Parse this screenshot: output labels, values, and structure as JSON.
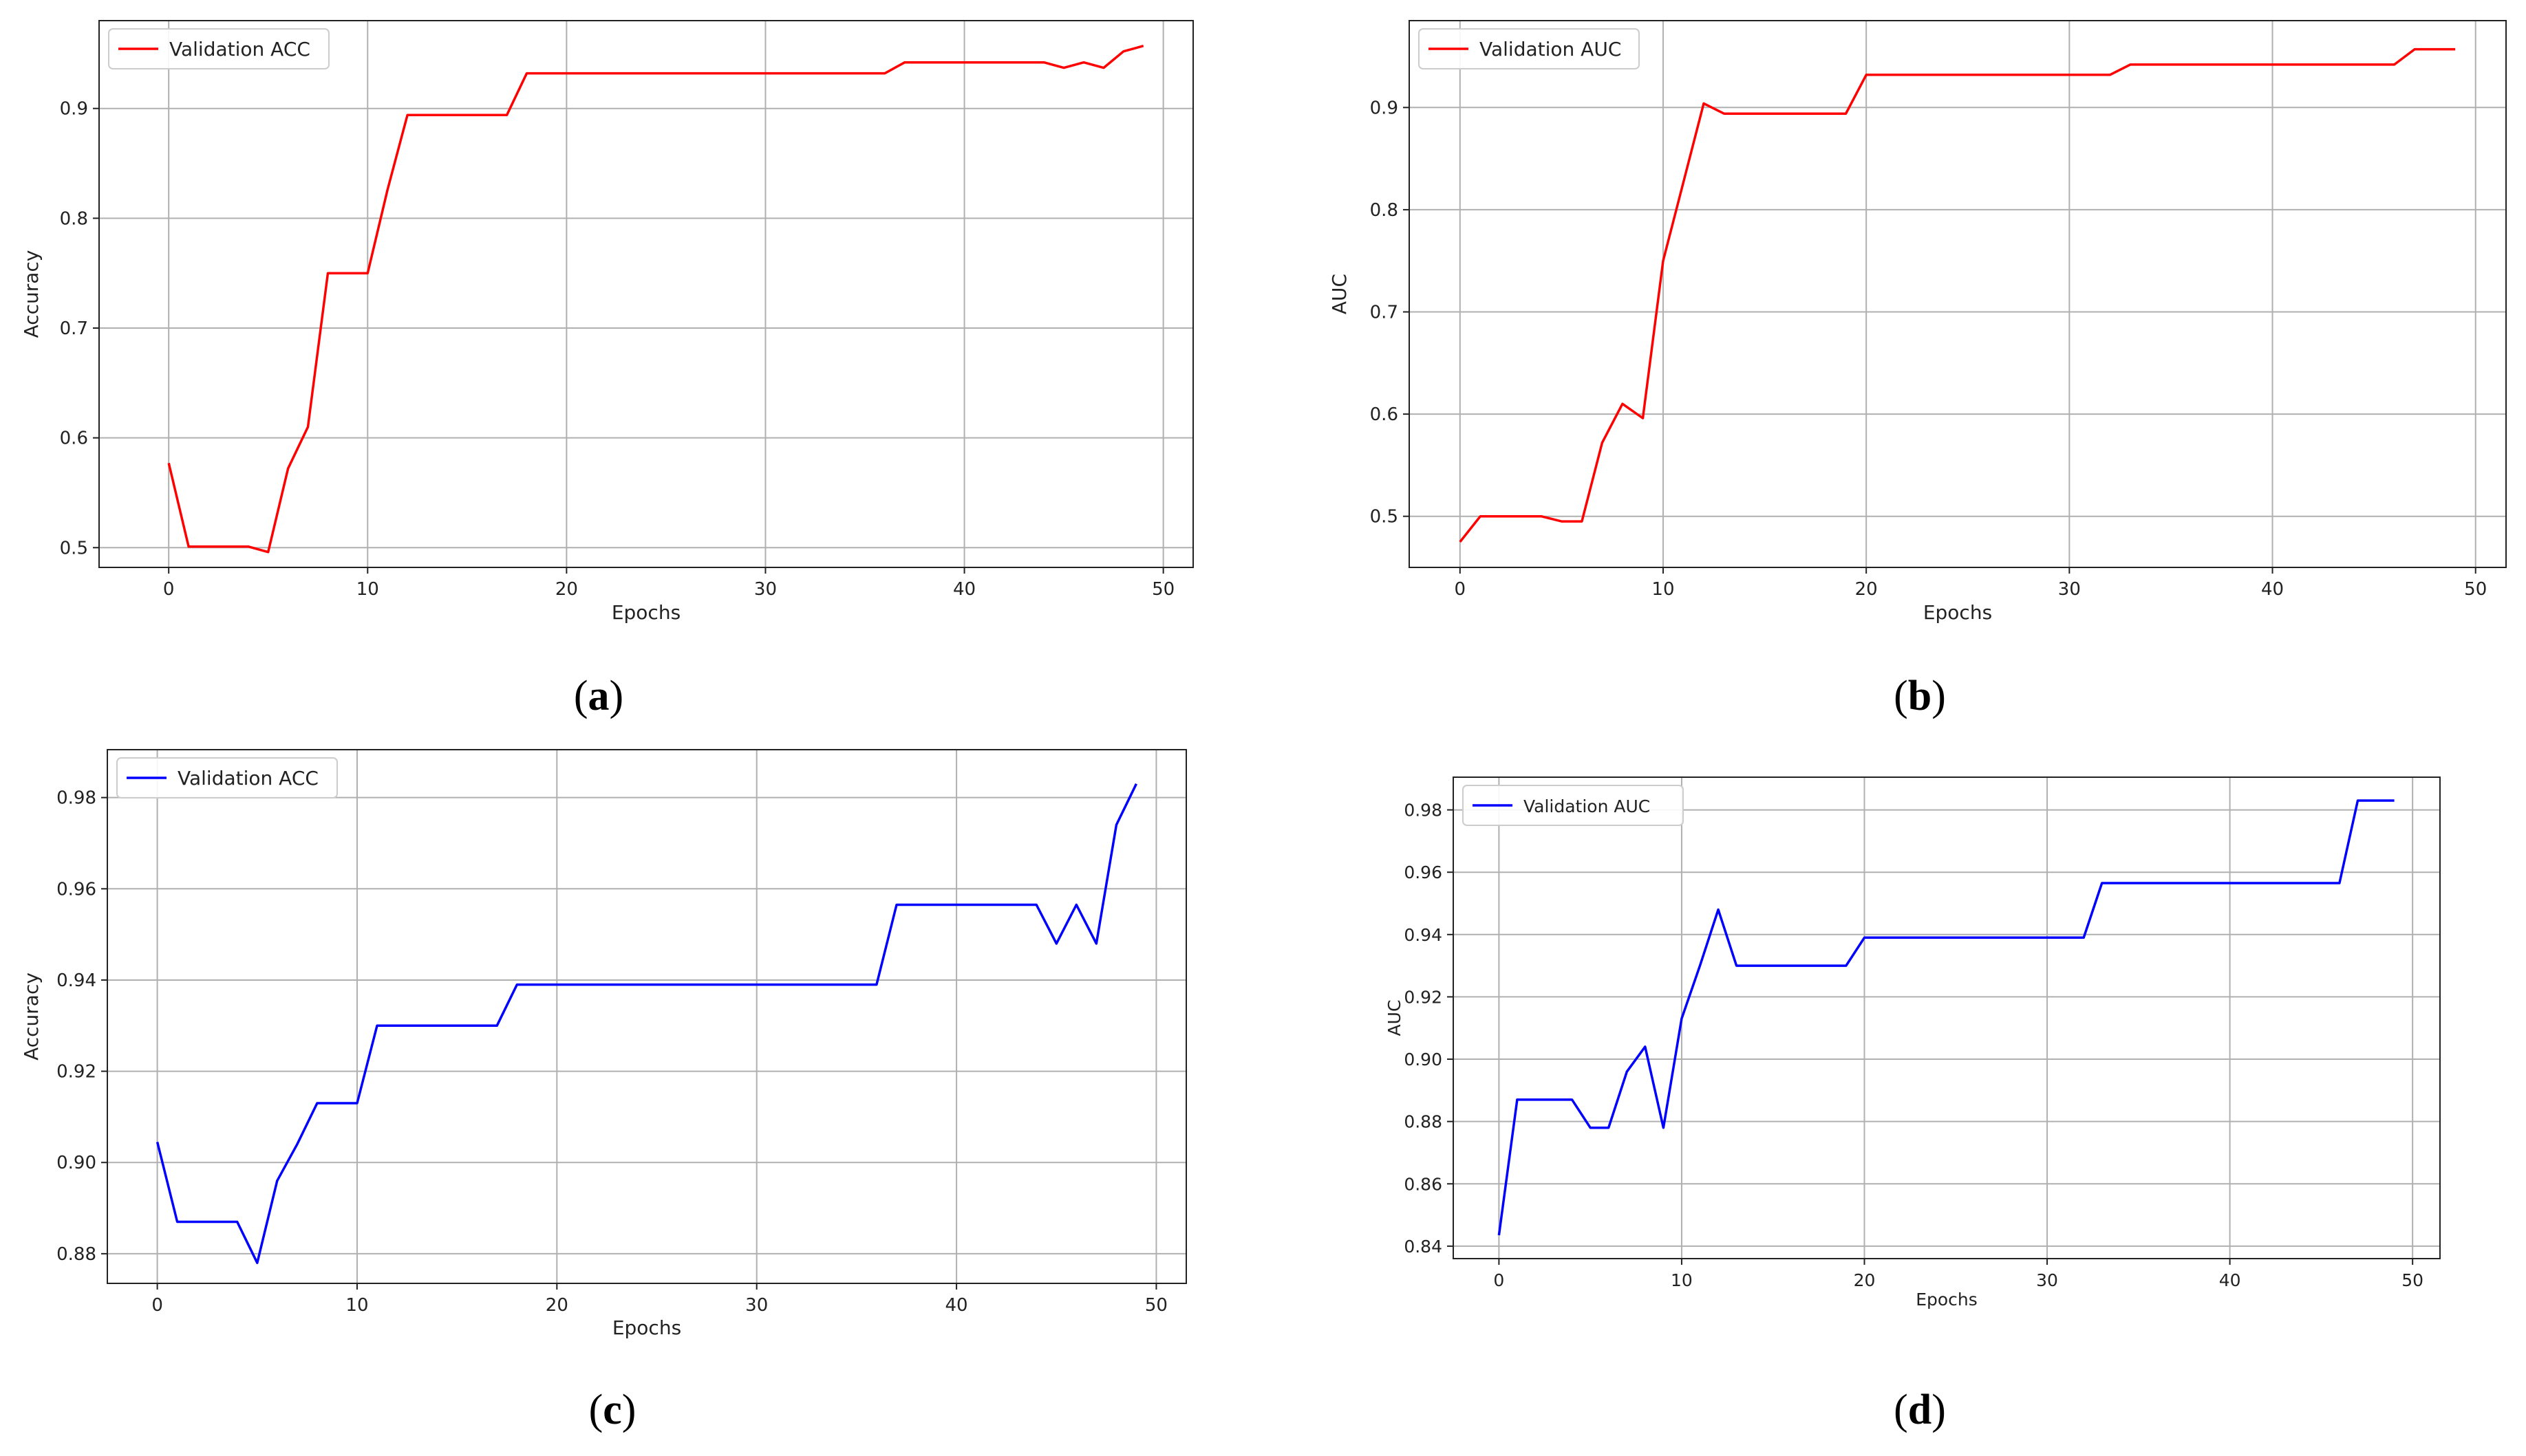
{
  "chart_data": [
    {
      "type": "line",
      "panel": "a",
      "xlabel": "Epochs",
      "ylabel": "Accuracy",
      "xlim": [
        -3.5,
        51.5
      ],
      "ylim": [
        0.482,
        0.98
      ],
      "xticks": [
        0,
        10,
        20,
        30,
        40,
        50
      ],
      "yticks": [
        0.5,
        0.6,
        0.7,
        0.8,
        0.9
      ],
      "ytick_labels": [
        "0.5",
        "0.6",
        "0.7",
        "0.8",
        "0.9"
      ],
      "grid": true,
      "legend_position": "top-left",
      "color": "#ff0000",
      "series": [
        {
          "name": "Validation ACC",
          "x": [
            0,
            1,
            2,
            3,
            4,
            5,
            6,
            7,
            8,
            9,
            10,
            11,
            12,
            13,
            14,
            15,
            16,
            17,
            18,
            19,
            20,
            21,
            22,
            23,
            24,
            25,
            26,
            27,
            28,
            29,
            30,
            31,
            32,
            33,
            34,
            35,
            36,
            37,
            38,
            39,
            40,
            41,
            42,
            43,
            44,
            45,
            46,
            47,
            48,
            49
          ],
          "y": [
            0.577,
            0.501,
            0.501,
            0.501,
            0.501,
            0.496,
            0.572,
            0.61,
            0.75,
            0.75,
            0.75,
            0.826,
            0.894,
            0.894,
            0.894,
            0.894,
            0.894,
            0.894,
            0.932,
            0.932,
            0.932,
            0.932,
            0.932,
            0.932,
            0.932,
            0.932,
            0.932,
            0.932,
            0.932,
            0.932,
            0.932,
            0.932,
            0.932,
            0.932,
            0.932,
            0.932,
            0.932,
            0.942,
            0.942,
            0.942,
            0.942,
            0.942,
            0.942,
            0.942,
            0.942,
            0.937,
            0.942,
            0.937,
            0.952,
            0.957
          ]
        }
      ]
    },
    {
      "type": "line",
      "panel": "b",
      "xlabel": "Epochs",
      "ylabel": "AUC",
      "xlim": [
        -2.5,
        51.5
      ],
      "ylim": [
        0.45,
        0.985
      ],
      "xticks": [
        0,
        10,
        20,
        30,
        40,
        50
      ],
      "yticks": [
        0.5,
        0.6,
        0.7,
        0.8,
        0.9
      ],
      "ytick_labels": [
        "0.5",
        "0.6",
        "0.7",
        "0.8",
        "0.9"
      ],
      "grid": true,
      "legend_position": "top-left",
      "color": "#ff0000",
      "series": [
        {
          "name": "Validation AUC",
          "x": [
            0,
            1,
            2,
            3,
            4,
            5,
            6,
            7,
            8,
            9,
            10,
            11,
            12,
            13,
            14,
            15,
            16,
            17,
            18,
            19,
            20,
            21,
            22,
            23,
            24,
            25,
            26,
            27,
            28,
            29,
            30,
            31,
            32,
            33,
            34,
            35,
            36,
            37,
            38,
            39,
            40,
            41,
            42,
            43,
            44,
            45,
            46,
            47,
            48,
            49
          ],
          "y": [
            0.475,
            0.5,
            0.5,
            0.5,
            0.5,
            0.495,
            0.495,
            0.572,
            0.61,
            0.596,
            0.75,
            0.827,
            0.904,
            0.894,
            0.894,
            0.894,
            0.894,
            0.894,
            0.894,
            0.894,
            0.932,
            0.932,
            0.932,
            0.932,
            0.932,
            0.932,
            0.932,
            0.932,
            0.932,
            0.932,
            0.932,
            0.932,
            0.932,
            0.942,
            0.942,
            0.942,
            0.942,
            0.942,
            0.942,
            0.942,
            0.942,
            0.942,
            0.942,
            0.942,
            0.942,
            0.942,
            0.942,
            0.957,
            0.957,
            0.957
          ]
        }
      ]
    },
    {
      "type": "line",
      "panel": "c",
      "xlabel": "Epochs",
      "ylabel": "Accuracy",
      "xlim": [
        -2.5,
        51.5
      ],
      "ylim": [
        0.8735,
        0.9905
      ],
      "xticks": [
        0,
        10,
        20,
        30,
        40,
        50
      ],
      "yticks": [
        0.88,
        0.9,
        0.92,
        0.94,
        0.96,
        0.98
      ],
      "ytick_labels": [
        "0.88",
        "0.90",
        "0.92",
        "0.94",
        "0.96",
        "0.98"
      ],
      "grid": true,
      "legend_position": "top-left",
      "color": "#0000ff",
      "series": [
        {
          "name": "Validation ACC",
          "x": [
            0,
            1,
            2,
            3,
            4,
            5,
            6,
            7,
            8,
            9,
            10,
            11,
            12,
            13,
            14,
            15,
            16,
            17,
            18,
            19,
            20,
            21,
            22,
            23,
            24,
            25,
            26,
            27,
            28,
            29,
            30,
            31,
            32,
            33,
            34,
            35,
            36,
            37,
            38,
            39,
            40,
            41,
            42,
            43,
            44,
            45,
            46,
            47,
            48,
            49
          ],
          "y": [
            0.9045,
            0.887,
            0.887,
            0.887,
            0.887,
            0.878,
            0.896,
            0.904,
            0.913,
            0.913,
            0.913,
            0.93,
            0.93,
            0.93,
            0.93,
            0.93,
            0.93,
            0.93,
            0.939,
            0.939,
            0.939,
            0.939,
            0.939,
            0.939,
            0.939,
            0.939,
            0.939,
            0.939,
            0.939,
            0.939,
            0.939,
            0.939,
            0.939,
            0.939,
            0.939,
            0.939,
            0.939,
            0.9565,
            0.9565,
            0.9565,
            0.9565,
            0.9565,
            0.9565,
            0.9565,
            0.9565,
            0.948,
            0.9565,
            0.948,
            0.974,
            0.983
          ]
        }
      ]
    },
    {
      "type": "line",
      "panel": "d",
      "xlabel": "Epochs",
      "ylabel": "AUC",
      "xlim": [
        -2.5,
        51.5
      ],
      "ylim": [
        0.836,
        0.9905
      ],
      "xticks": [
        0,
        10,
        20,
        30,
        40,
        50
      ],
      "yticks": [
        0.84,
        0.86,
        0.88,
        0.9,
        0.92,
        0.94,
        0.96,
        0.98
      ],
      "ytick_labels": [
        "0.84",
        "0.86",
        "0.88",
        "0.90",
        "0.92",
        "0.94",
        "0.96",
        "0.98"
      ],
      "grid": true,
      "legend_position": "top-left",
      "color": "#0000ff",
      "series": [
        {
          "name": "Validation AUC",
          "x": [
            0,
            1,
            2,
            3,
            4,
            5,
            6,
            7,
            8,
            9,
            10,
            11,
            12,
            13,
            14,
            15,
            16,
            17,
            18,
            19,
            20,
            21,
            22,
            23,
            24,
            25,
            26,
            27,
            28,
            29,
            30,
            31,
            32,
            33,
            34,
            35,
            36,
            37,
            38,
            39,
            40,
            41,
            42,
            43,
            44,
            45,
            46,
            47,
            48,
            49
          ],
          "y": [
            0.8435,
            0.887,
            0.887,
            0.887,
            0.887,
            0.878,
            0.878,
            0.896,
            0.904,
            0.878,
            0.913,
            0.93,
            0.948,
            0.93,
            0.93,
            0.93,
            0.93,
            0.93,
            0.93,
            0.93,
            0.939,
            0.939,
            0.939,
            0.939,
            0.939,
            0.939,
            0.939,
            0.939,
            0.939,
            0.939,
            0.939,
            0.939,
            0.939,
            0.9565,
            0.9565,
            0.9565,
            0.9565,
            0.9565,
            0.9565,
            0.9565,
            0.9565,
            0.9565,
            0.9565,
            0.9565,
            0.9565,
            0.9565,
            0.9565,
            0.983,
            0.983,
            0.983
          ]
        }
      ]
    }
  ],
  "panel_labels": [
    "a",
    "b",
    "c",
    "d"
  ]
}
